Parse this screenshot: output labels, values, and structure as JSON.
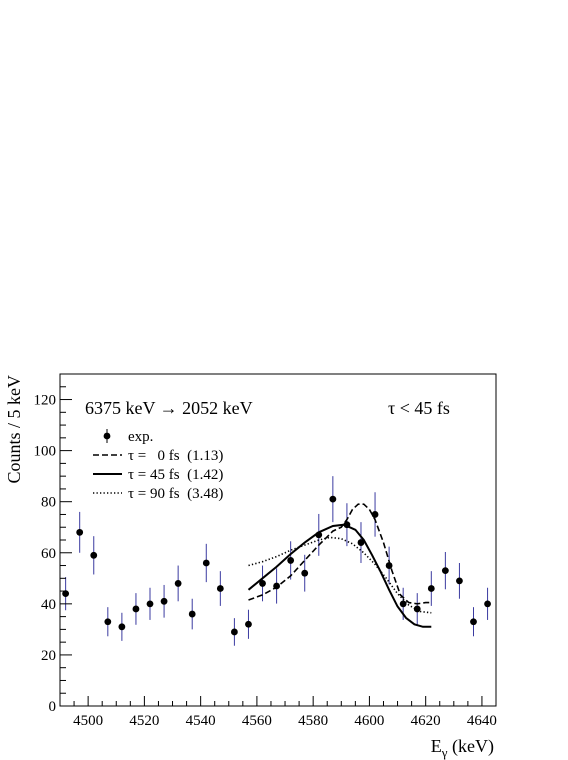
{
  "chart_data": {
    "type": "scatter",
    "xlabel": "E",
    "xlabel_sub": "γ",
    "xlabel_unit": " (keV)",
    "ylabel": "Counts / 5 keV",
    "xlim": [
      4490,
      4645
    ],
    "ylim": [
      0,
      130
    ],
    "x_ticks": [
      4500,
      4520,
      4540,
      4560,
      4580,
      4600,
      4620,
      4640
    ],
    "y_ticks": [
      0,
      20,
      40,
      60,
      80,
      100,
      120
    ],
    "grid": false,
    "annotations": {
      "transition": "6375 keV → 2052 keV",
      "limit": "τ < 45 fs"
    },
    "legend": {
      "placement": "top-left",
      "entries": [
        {
          "style": "points",
          "text": "exp."
        },
        {
          "style": "dashed",
          "text": "τ =   0 fs  (1.13)"
        },
        {
          "style": "solid",
          "text": "τ = 45 fs  (1.42)"
        },
        {
          "style": "dotted",
          "text": "τ = 90 fs  (3.48)"
        }
      ]
    },
    "series": [
      {
        "name": "exp.",
        "style": "points",
        "x": [
          4492,
          4497,
          4502,
          4507,
          4512,
          4517,
          4522,
          4527,
          4532,
          4537,
          4542,
          4547,
          4552,
          4557,
          4562,
          4567,
          4572,
          4577,
          4582,
          4587,
          4592,
          4597,
          4602,
          4607,
          4612,
          4617,
          4622,
          4627,
          4632,
          4637,
          4642
        ],
        "y": [
          44,
          68,
          59,
          33,
          31,
          38,
          40,
          41,
          48,
          36,
          56,
          46,
          29,
          32,
          48,
          47,
          57,
          52,
          67,
          81,
          71,
          64,
          75,
          55,
          40,
          38,
          46,
          53,
          49,
          33,
          40
        ],
        "errors": [
          6.5,
          8,
          7.5,
          5.7,
          5.5,
          6.2,
          6.3,
          6.4,
          7,
          6,
          7.5,
          6.8,
          5.4,
          5.7,
          7,
          6.9,
          7.5,
          7.2,
          8.2,
          9,
          8.4,
          8,
          8.7,
          7.4,
          6.3,
          6.2,
          6.8,
          7.3,
          7,
          5.7,
          6.3
        ]
      },
      {
        "name": "τ =   0 fs  (1.13)",
        "style": "dashed",
        "x": [
          4557,
          4562,
          4567,
          4572,
          4577,
          4582,
          4587,
          4590,
          4592,
          4594,
          4596,
          4598,
          4600,
          4602,
          4605,
          4608,
          4611,
          4614,
          4617,
          4620,
          4622
        ],
        "y": [
          41.5,
          43.5,
          46.5,
          51,
          57,
          63,
          68.5,
          70,
          73,
          77,
          79,
          79,
          77,
          73,
          64,
          53,
          43.5,
          40.5,
          40,
          40.5,
          40.5
        ]
      },
      {
        "name": "τ = 45 fs  (1.42)",
        "style": "solid",
        "x": [
          4557,
          4562,
          4567,
          4572,
          4577,
          4582,
          4587,
          4591,
          4595,
          4598,
          4601,
          4604,
          4607,
          4610,
          4613,
          4616,
          4619,
          4622
        ],
        "y": [
          45.5,
          50,
          54.5,
          59.5,
          64,
          68,
          70.5,
          71,
          69,
          65,
          59,
          52.5,
          45.5,
          39,
          34.5,
          32,
          31,
          31
        ]
      },
      {
        "name": "τ = 90 fs  (3.48)",
        "style": "dotted",
        "x": [
          4557,
          4562,
          4567,
          4572,
          4577,
          4582,
          4586,
          4590,
          4594,
          4598,
          4602,
          4606,
          4610,
          4614,
          4618,
          4622
        ],
        "y": [
          55,
          56.5,
          58.5,
          61,
          63,
          65,
          66,
          65.5,
          63.5,
          60,
          55.5,
          50,
          44,
          39.5,
          37,
          36.5
        ]
      }
    ]
  },
  "colors": {
    "error_bar": "#3a3aa0",
    "marker": "#000000",
    "axis": "#000000"
  }
}
